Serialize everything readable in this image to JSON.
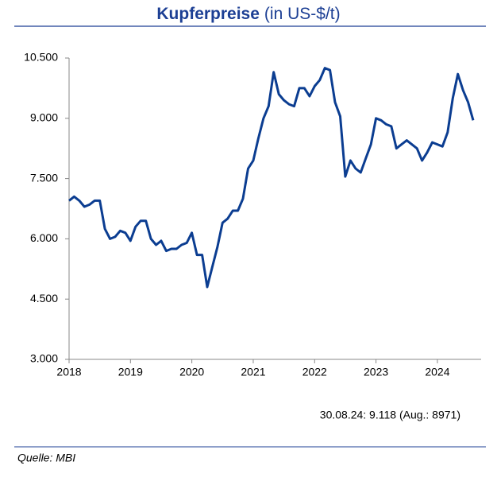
{
  "chart_data": {
    "type": "line",
    "title": "Kupferpreise",
    "subtitle": "(in US-$/t)",
    "x": [
      2018,
      2018.083,
      2018.167,
      2018.25,
      2018.333,
      2018.417,
      2018.5,
      2018.583,
      2018.667,
      2018.75,
      2018.833,
      2018.917,
      2019,
      2019.083,
      2019.167,
      2019.25,
      2019.333,
      2019.417,
      2019.5,
      2019.583,
      2019.667,
      2019.75,
      2019.833,
      2019.917,
      2020,
      2020.083,
      2020.167,
      2020.25,
      2020.333,
      2020.417,
      2020.5,
      2020.583,
      2020.667,
      2020.75,
      2020.833,
      2020.917,
      2021,
      2021.083,
      2021.167,
      2021.25,
      2021.333,
      2021.417,
      2021.5,
      2021.583,
      2021.667,
      2021.75,
      2021.833,
      2021.917,
      2022,
      2022.083,
      2022.167,
      2022.25,
      2022.333,
      2022.417,
      2022.5,
      2022.583,
      2022.667,
      2022.75,
      2022.833,
      2022.917,
      2023,
      2023.083,
      2023.167,
      2023.25,
      2023.333,
      2023.417,
      2023.5,
      2023.583,
      2023.667,
      2023.75,
      2023.833,
      2023.917,
      2024,
      2024.083,
      2024.167,
      2024.25,
      2024.333,
      2024.417,
      2024.5,
      2024.583
    ],
    "series": [
      {
        "name": "Kupferpreis",
        "color": "#0b3d91",
        "values": [
          6950,
          7050,
          6950,
          6800,
          6850,
          6950,
          6950,
          6250,
          6000,
          6050,
          6200,
          6150,
          5950,
          6300,
          6450,
          6450,
          6000,
          5850,
          5950,
          5700,
          5750,
          5750,
          5850,
          5900,
          6150,
          5600,
          5600,
          4800,
          5300,
          5800,
          6400,
          6500,
          6700,
          6700,
          7000,
          7750,
          7950,
          8500,
          9000,
          9300,
          10150,
          9600,
          9450,
          9350,
          9300,
          9750,
          9750,
          9550,
          9800,
          9950,
          10250,
          10200,
          9400,
          9050,
          7550,
          7950,
          7750,
          7650,
          8000,
          8350,
          9000,
          8950,
          8850,
          8800,
          8250,
          8350,
          8450,
          8350,
          8250,
          7950,
          8150,
          8400,
          8350,
          8300,
          8650,
          9500,
          10100,
          9700,
          9400,
          8950
        ]
      }
    ],
    "xlim": [
      2018,
      2024.583
    ],
    "xticks": [
      2018,
      2019,
      2020,
      2021,
      2022,
      2023,
      2024
    ],
    "ylim": [
      3000,
      10500
    ],
    "yticks": [
      {
        "value": 3000,
        "label": "3.000"
      },
      {
        "value": 4500,
        "label": "4.500"
      },
      {
        "value": 6000,
        "label": "6.000"
      },
      {
        "value": 7500,
        "label": "7.500"
      },
      {
        "value": 9000,
        "label": "9.000"
      },
      {
        "value": 10500,
        "label": "10.500"
      }
    ],
    "annotations": [
      "30.08.24: 9.118   (Aug.: 8971)"
    ],
    "source": "Quelle: MBI"
  }
}
